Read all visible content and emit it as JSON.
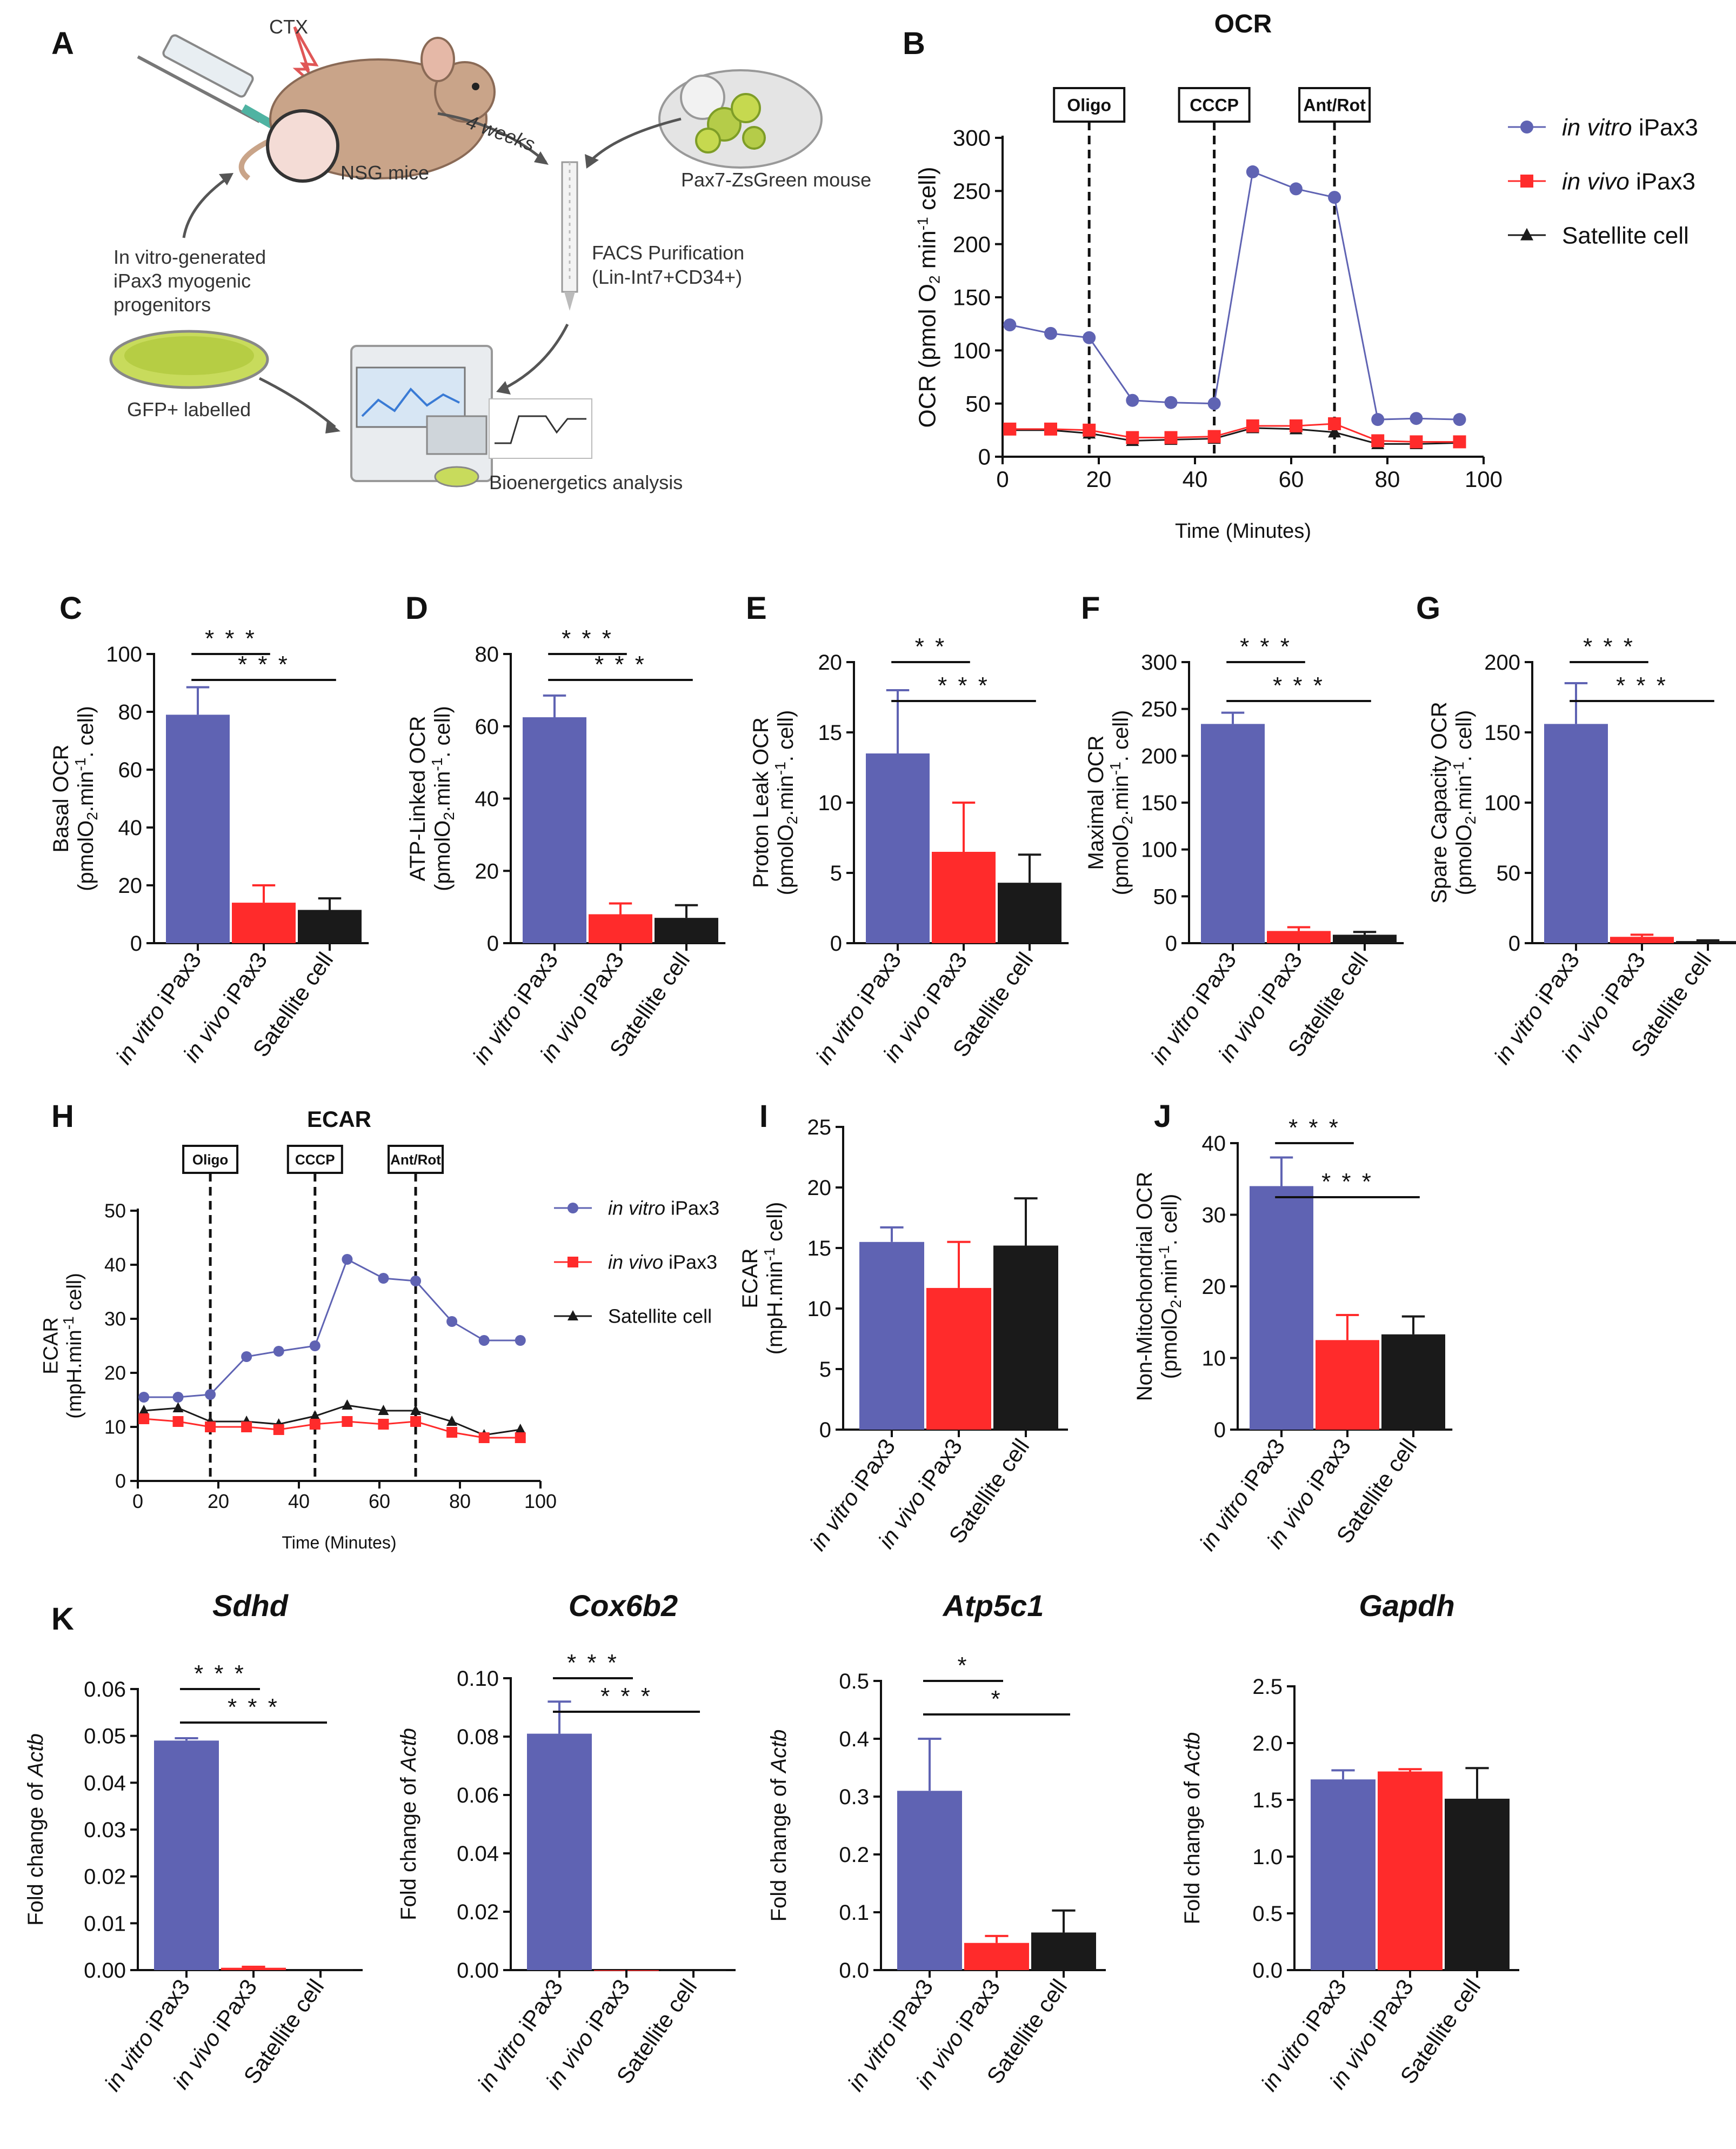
{
  "panel_labels": [
    "A",
    "B",
    "C",
    "D",
    "E",
    "F",
    "G",
    "H",
    "I",
    "J",
    "K"
  ],
  "colors": {
    "in_vitro": "#5f63b3",
    "in_vivo": "#ff2b2b",
    "satellite": "#1a1a1a"
  },
  "groups": [
    "in vitro iPax3",
    "in vivo iPax3",
    "Satellite cell"
  ],
  "group_parts": [
    {
      "italic": "in vitro",
      "plain": " iPax3"
    },
    {
      "italic": "in vivo",
      "plain": " iPax3"
    },
    {
      "italic": "",
      "plain": "Satellite cell"
    }
  ],
  "schematic": {
    "ctx": "CTX",
    "nsg": "NSG mice",
    "weeks": "4 weeks",
    "pax7": "Pax7-ZsGreen mouse",
    "facs1": "FACS Purification",
    "facs2": "(Lin-Int7+CD34+)",
    "invitro1": "In vitro-generated",
    "invitro2": "iPax3 myogenic",
    "invitro3": "progenitors",
    "gfp": "GFP+ labelled",
    "bio": "Bioenergetics analysis"
  },
  "chart_data": [
    {
      "id": "B",
      "type": "line",
      "title": "OCR",
      "xlabel": "Time (Minutes)",
      "ylabel": "OCR (pmol O2  min-1 cell)",
      "xlim": [
        0,
        100
      ],
      "ylim": [
        0,
        300
      ],
      "xticks": [
        0,
        20,
        40,
        60,
        80,
        100
      ],
      "yticks": [
        0,
        50,
        100,
        150,
        200,
        250,
        300
      ],
      "injections": [
        {
          "label": "Oligo",
          "x": 18
        },
        {
          "label": "CCCP",
          "x": 44
        },
        {
          "label": "Ant/Rot",
          "x": 69
        }
      ],
      "x": [
        1.5,
        10,
        18,
        27,
        35,
        44,
        52,
        61,
        69,
        78,
        86,
        95
      ],
      "series": [
        {
          "name": "in vitro iPax3",
          "marker": "circle",
          "values": [
            124,
            116,
            112,
            53,
            51,
            50,
            268,
            252,
            244,
            35,
            36,
            35
          ]
        },
        {
          "name": "in vivo iPax3",
          "marker": "square",
          "values": [
            26,
            26,
            25,
            18,
            18,
            19,
            29,
            29,
            31,
            15,
            14,
            14
          ]
        },
        {
          "name": "Satellite cell",
          "marker": "triangle",
          "values": [
            25,
            25,
            22,
            15,
            16,
            17,
            27,
            26,
            23,
            12,
            12,
            13
          ]
        }
      ]
    },
    {
      "id": "C",
      "type": "bar",
      "ylabel1": "Basal OCR",
      "ylabel2": "(pmolO2.min-1. cell)",
      "ylim": [
        0,
        100
      ],
      "yticks": [
        0,
        20,
        40,
        60,
        80,
        100
      ],
      "values": [
        79,
        14,
        11.5
      ],
      "errors": [
        9.5,
        6,
        4
      ],
      "sig": [
        {
          "from": 0,
          "to": 1,
          "label": "***"
        },
        {
          "from": 0,
          "to": 2,
          "label": "***"
        }
      ]
    },
    {
      "id": "D",
      "type": "bar",
      "ylabel1": "ATP-Linked OCR",
      "ylabel2": "(pmolO2.min-1. cell)",
      "ylim": [
        0,
        80
      ],
      "yticks": [
        0,
        20,
        40,
        60,
        80
      ],
      "values": [
        62.5,
        8,
        7
      ],
      "errors": [
        6,
        3,
        3.5
      ],
      "sig": [
        {
          "from": 0,
          "to": 1,
          "label": "***"
        },
        {
          "from": 0,
          "to": 2,
          "label": "***"
        }
      ]
    },
    {
      "id": "E",
      "type": "bar",
      "ylabel1": "Proton Leak OCR",
      "ylabel2": "(pmolO2.min-1. cell)",
      "ylim": [
        0,
        20
      ],
      "yticks": [
        0,
        5,
        10,
        15,
        20
      ],
      "values": [
        13.5,
        6.5,
        4.3
      ],
      "errors": [
        4.5,
        3.5,
        2
      ],
      "sig": [
        {
          "from": 0,
          "to": 1,
          "label": "**"
        },
        {
          "from": 0,
          "to": 2,
          "label": "***"
        }
      ]
    },
    {
      "id": "F",
      "type": "bar",
      "ylabel1": "Maximal OCR",
      "ylabel2": "(pmolO2.min-1. cell)",
      "ylim": [
        0,
        300
      ],
      "yticks": [
        0,
        50,
        100,
        150,
        200,
        250,
        300
      ],
      "values": [
        234,
        13,
        9
      ],
      "errors": [
        12,
        4,
        3
      ],
      "sig": [
        {
          "from": 0,
          "to": 1,
          "label": "***"
        },
        {
          "from": 0,
          "to": 2,
          "label": "***"
        }
      ]
    },
    {
      "id": "G",
      "type": "bar",
      "ylabel1": "Spare Capacity OCR",
      "ylabel2": "(pmolO2.min-1. cell)",
      "ylim": [
        0,
        200
      ],
      "yticks": [
        0,
        50,
        100,
        150,
        200
      ],
      "values": [
        156,
        4.5,
        1.5
      ],
      "errors": [
        29,
        1.5,
        0.5
      ],
      "sig": [
        {
          "from": 0,
          "to": 1,
          "label": "***"
        },
        {
          "from": 0,
          "to": 2,
          "label": "***"
        }
      ]
    },
    {
      "id": "H",
      "type": "line",
      "title": "ECAR",
      "xlabel": "Time (Minutes)",
      "ylabel1": "ECAR",
      "ylabel2": "(mpH.min-1 cell)",
      "xlim": [
        0,
        100
      ],
      "ylim": [
        0,
        50
      ],
      "xticks": [
        0,
        20,
        40,
        60,
        80,
        100
      ],
      "yticks": [
        0,
        10,
        20,
        30,
        40,
        50
      ],
      "injections": [
        {
          "label": "Oligo",
          "x": 18
        },
        {
          "label": "CCCP",
          "x": 44
        },
        {
          "label": "Ant/Rot",
          "x": 69
        }
      ],
      "x": [
        1.5,
        10,
        18,
        27,
        35,
        44,
        52,
        61,
        69,
        78,
        86,
        95
      ],
      "series": [
        {
          "name": "in vitro iPax3",
          "marker": "circle",
          "values": [
            15.5,
            15.5,
            16,
            23,
            24,
            25,
            41,
            37.5,
            37,
            29.5,
            26,
            26
          ]
        },
        {
          "name": "in vivo iPax3",
          "marker": "square",
          "values": [
            11.5,
            11,
            10,
            10,
            9.5,
            10.5,
            11,
            10.5,
            11,
            9,
            8,
            8
          ]
        },
        {
          "name": "Satellite cell",
          "marker": "triangle",
          "values": [
            13,
            13.5,
            11,
            11,
            10.5,
            12,
            14,
            13,
            13,
            11,
            8.5,
            9.5
          ]
        }
      ]
    },
    {
      "id": "I",
      "type": "bar",
      "ylabel1": "ECAR",
      "ylabel2": "(mpH.min-1 cell)",
      "ylim": [
        0,
        25
      ],
      "yticks": [
        0,
        5,
        10,
        15,
        20,
        25
      ],
      "values": [
        15.5,
        11.7,
        15.2
      ],
      "errors": [
        1.2,
        3.8,
        3.9
      ],
      "sig": []
    },
    {
      "id": "J",
      "type": "bar",
      "ylabel1": "Non-Mitochondrial OCR",
      "ylabel2": "(pmolO2.min-1. cell)",
      "ylim": [
        0,
        40
      ],
      "yticks": [
        0,
        10,
        20,
        30,
        40
      ],
      "values": [
        34,
        12.5,
        13.3
      ],
      "errors": [
        4,
        3.5,
        2.5
      ],
      "sig": [
        {
          "from": 0,
          "to": 1,
          "label": "***"
        },
        {
          "from": 0,
          "to": 2,
          "label": "***"
        }
      ]
    },
    {
      "id": "K1",
      "type": "bar",
      "title": "Sdhd",
      "ylabel": "Fold change of Actb",
      "ylim": [
        0,
        0.06
      ],
      "yticks": [
        0,
        0.01,
        0.02,
        0.03,
        0.04,
        0.05,
        0.06
      ],
      "ytick_labels": [
        "0.00",
        "0.01",
        "0.02",
        "0.03",
        "0.04",
        "0.05",
        "0.06"
      ],
      "values": [
        0.049,
        0.0005,
        0.0001
      ],
      "errors": [
        0.0005,
        0.0002,
        0
      ],
      "sig": [
        {
          "from": 0,
          "to": 1,
          "label": "***"
        },
        {
          "from": 0,
          "to": 2,
          "label": "***"
        }
      ]
    },
    {
      "id": "K2",
      "type": "bar",
      "title": "Cox6b2",
      "ylabel": "Fold change of Actb",
      "ylim": [
        0,
        0.1
      ],
      "yticks": [
        0,
        0.02,
        0.04,
        0.06,
        0.08,
        0.1
      ],
      "ytick_labels": [
        "0.00",
        "0.02",
        "0.04",
        "0.06",
        "0.08",
        "0.10"
      ],
      "values": [
        0.081,
        0,
        0
      ],
      "errors": [
        0.011,
        0,
        0
      ],
      "sig": [
        {
          "from": 0,
          "to": 1,
          "label": "***"
        },
        {
          "from": 0,
          "to": 2,
          "label": "***"
        }
      ]
    },
    {
      "id": "K3",
      "type": "bar",
      "title": "Atp5c1",
      "ylabel": "Fold change of Actb",
      "ylim": [
        0,
        0.5
      ],
      "yticks": [
        0,
        0.1,
        0.2,
        0.3,
        0.4,
        0.5
      ],
      "ytick_labels": [
        "0.0",
        "0.1",
        "0.2",
        "0.3",
        "0.4",
        "0.5"
      ],
      "values": [
        0.31,
        0.047,
        0.065
      ],
      "errors": [
        0.09,
        0.012,
        0.038
      ],
      "sig": [
        {
          "from": 0,
          "to": 1,
          "label": "*"
        },
        {
          "from": 0,
          "to": 2,
          "label": "*"
        }
      ]
    },
    {
      "id": "K4",
      "type": "bar",
      "title": "Gapdh",
      "ylabel": "Fold change of Actb",
      "ylim": [
        0,
        2.5
      ],
      "yticks": [
        0,
        0.5,
        1,
        1.5,
        2,
        2.5
      ],
      "ytick_labels": [
        "0.0",
        "0.5",
        "1.0",
        "1.5",
        "2.0",
        "2.5"
      ],
      "values": [
        1.68,
        1.75,
        1.51
      ],
      "errors": [
        0.08,
        0.02,
        0.27
      ],
      "sig": []
    }
  ]
}
